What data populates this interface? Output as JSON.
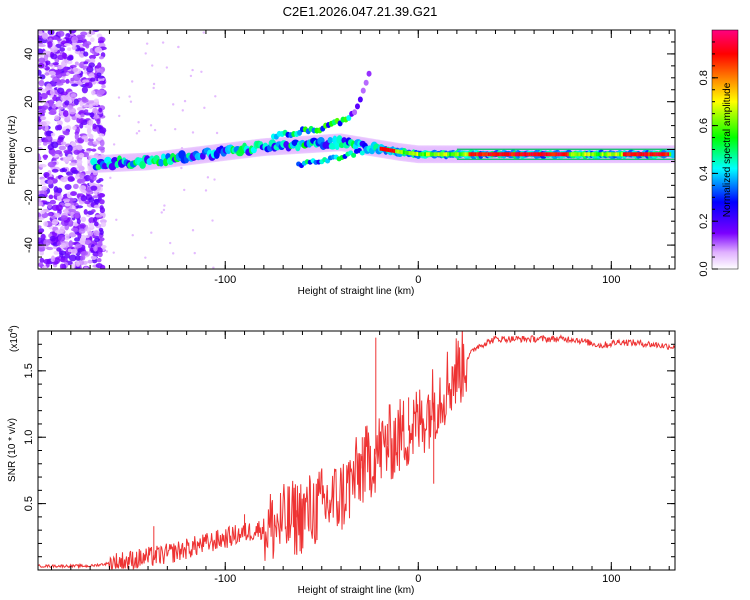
{
  "title": "C2E1.2026.047.21.39.G21",
  "chart_data": [
    {
      "type": "heatmap",
      "xlabel": "Height of straight line (km)",
      "ylabel": "Frequency (Hz)",
      "xlim": [
        -197,
        133
      ],
      "ylim": [
        -50,
        50
      ],
      "xticks": [
        -100,
        0,
        100
      ],
      "xtick_labels": [
        "-100",
        "0",
        "100"
      ],
      "yticks": [
        -40,
        -20,
        0,
        20,
        40
      ],
      "ytick_labels": [
        "-40",
        "-20",
        "0",
        "20",
        "40"
      ],
      "colorbar": {
        "label": "Normalized spectral amplitude",
        "range": [
          0,
          1
        ],
        "ticks": [
          0.0,
          0.2,
          0.4,
          0.6,
          0.8
        ],
        "tick_labels": [
          "0.0",
          "0.2",
          "0.4",
          "0.6",
          "0.8"
        ],
        "colors": [
          "#ffffff",
          "#7b00ff",
          "#0000ff",
          "#00ffff",
          "#00ff00",
          "#ffff00",
          "#ff8000",
          "#ff0000",
          "#ff0080"
        ]
      },
      "ridge": [
        {
          "x": -165,
          "f": -6
        },
        {
          "x": -140,
          "f": -5
        },
        {
          "x": -120,
          "f": -3
        },
        {
          "x": -100,
          "f": -1
        },
        {
          "x": -80,
          "f": 1
        },
        {
          "x": -60,
          "f": 2
        },
        {
          "x": -40,
          "f": 3
        },
        {
          "x": -25,
          "f": 1
        },
        {
          "x": -10,
          "f": -1
        },
        {
          "x": 0,
          "f": -2
        },
        {
          "x": 20,
          "f": -2
        },
        {
          "x": 60,
          "f": -2
        },
        {
          "x": 100,
          "f": -2
        },
        {
          "x": 133,
          "f": -2
        }
      ],
      "branch": [
        {
          "x": -70,
          "f": 6
        },
        {
          "x": -50,
          "f": 9
        },
        {
          "x": -40,
          "f": 12
        },
        {
          "x": -32,
          "f": 16
        },
        {
          "x": -28,
          "f": 26
        },
        {
          "x": -25,
          "f": 33
        }
      ],
      "lower_branch": [
        {
          "x": -60,
          "f": -6
        },
        {
          "x": -45,
          "f": -4
        },
        {
          "x": -30,
          "f": -1
        }
      ]
    },
    {
      "type": "line",
      "xlabel": "Height of straight line (km)",
      "ylabel": "SNR (10 * v/v)",
      "y_multiplier": "(x10",
      "y_multiplier_exp": "4",
      "y_multiplier_close": ")",
      "xlim": [
        -197,
        133
      ],
      "ylim": [
        0,
        1.8
      ],
      "xticks": [
        -100,
        0,
        100
      ],
      "xtick_labels": [
        "-100",
        "0",
        "100"
      ],
      "yticks": [
        0.5,
        1.0,
        1.5
      ],
      "ytick_labels": [
        "0.5",
        "1.0",
        "1.5"
      ],
      "color": "#ee3333",
      "series": [
        {
          "x": -197,
          "y": 0.03
        },
        {
          "x": -170,
          "y": 0.03
        },
        {
          "x": -150,
          "y": 0.07
        },
        {
          "x": -130,
          "y": 0.12
        },
        {
          "x": -110,
          "y": 0.2
        },
        {
          "x": -90,
          "y": 0.28
        },
        {
          "x": -70,
          "y": 0.35
        },
        {
          "x": -55,
          "y": 0.45
        },
        {
          "x": -40,
          "y": 0.55
        },
        {
          "x": -30,
          "y": 0.75
        },
        {
          "x": -20,
          "y": 0.9
        },
        {
          "x": -10,
          "y": 1.0
        },
        {
          "x": 0,
          "y": 1.1
        },
        {
          "x": 10,
          "y": 1.3
        },
        {
          "x": 20,
          "y": 1.5
        },
        {
          "x": 30,
          "y": 1.68
        },
        {
          "x": 40,
          "y": 1.74
        },
        {
          "x": 60,
          "y": 1.74
        },
        {
          "x": 80,
          "y": 1.74
        },
        {
          "x": 95,
          "y": 1.69
        },
        {
          "x": 105,
          "y": 1.72
        },
        {
          "x": 120,
          "y": 1.7
        },
        {
          "x": 133,
          "y": 1.68
        }
      ],
      "spikes": [
        {
          "x": -137,
          "y": 0.33
        },
        {
          "x": -90,
          "y": 0.42
        },
        {
          "x": -63,
          "y": 0.45
        },
        {
          "x": -47,
          "y": 0.6
        },
        {
          "x": -29,
          "y": 1.0
        },
        {
          "x": -22,
          "y": 1.75
        },
        {
          "x": -16,
          "y": 1.1
        },
        {
          "x": -5,
          "y": 1.3
        },
        {
          "x": 8,
          "y": 0.65
        }
      ]
    }
  ]
}
